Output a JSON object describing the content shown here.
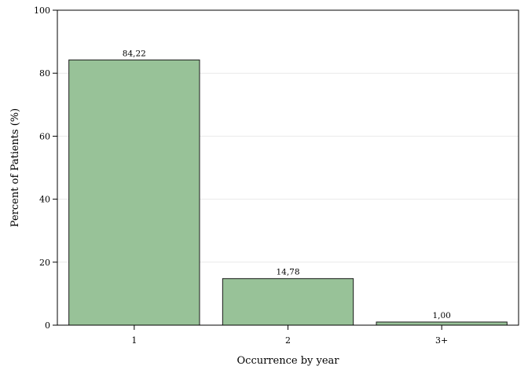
{
  "chart_data": {
    "type": "bar",
    "title": "",
    "xlabel": "Occurrence by year",
    "ylabel": "Percent of Patients (%)",
    "categories": [
      "1",
      "2",
      "3+"
    ],
    "values": [
      84.22,
      14.78,
      1.0
    ],
    "value_labels": [
      "84,22",
      "14,78",
      "1,00"
    ],
    "ylim": [
      0,
      100
    ],
    "yticks": [
      0,
      20,
      40,
      60,
      80,
      100
    ],
    "grid": true,
    "legend": "none",
    "colors": {
      "bar_fill": "#98c298",
      "bar_stroke": "#1a1a1a",
      "grid": "#e9e9e9",
      "frame": "#000000"
    }
  }
}
